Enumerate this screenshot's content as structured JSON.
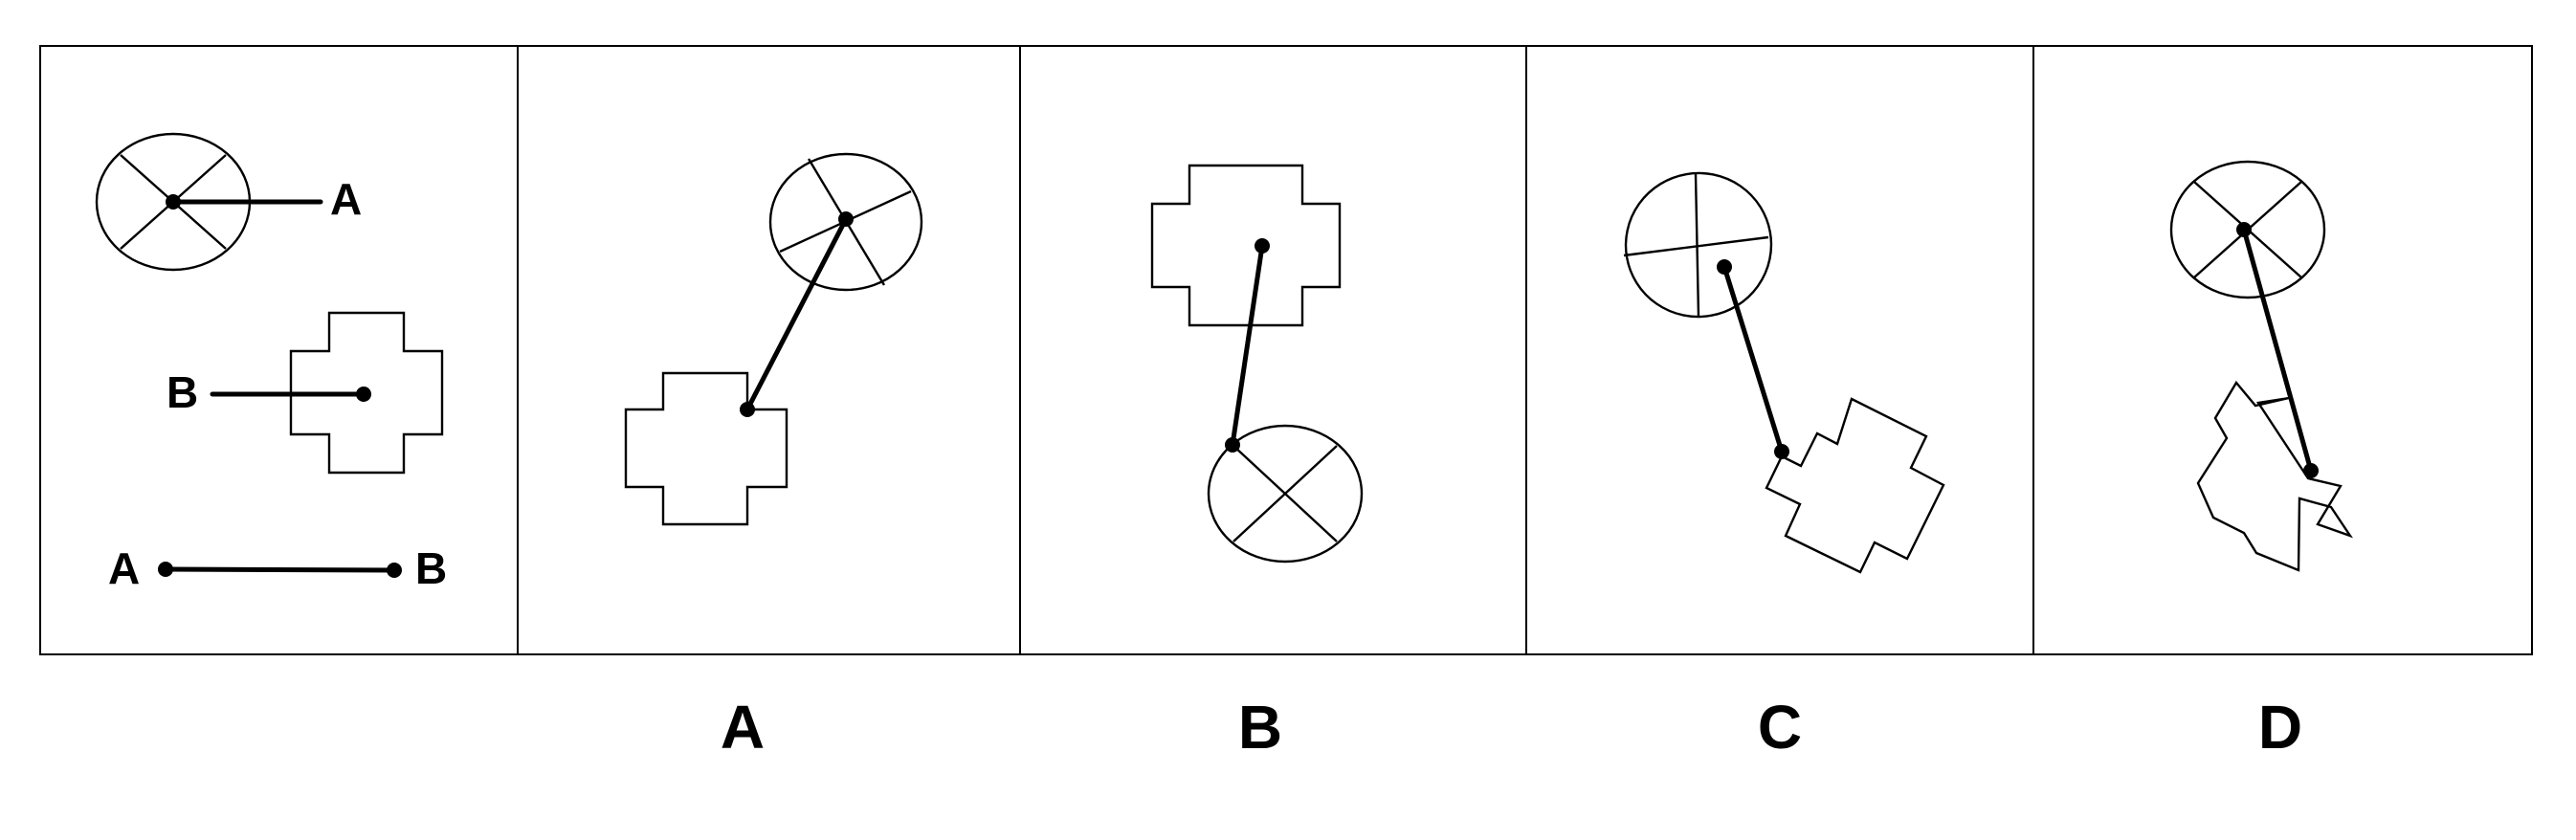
{
  "example": {
    "label_a_right": "A",
    "label_b_left": "B",
    "label_a_left": "A",
    "label_b_right": "B"
  },
  "options": [
    {
      "label": "A"
    },
    {
      "label": "B"
    },
    {
      "label": "C"
    },
    {
      "label": "D"
    }
  ]
}
